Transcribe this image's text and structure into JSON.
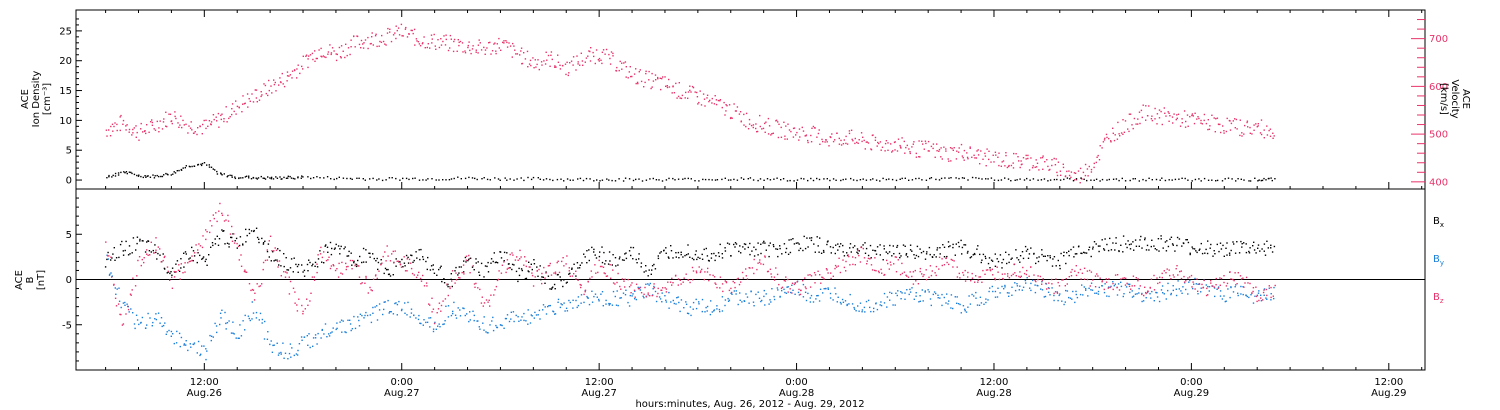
{
  "chart_data": [
    {
      "type": "scatter",
      "panel": "top",
      "ylabel_left": [
        "ACE",
        "Ion Density",
        "[cm⁻³]"
      ],
      "ylabel_right": [
        "ACE",
        "Velocity",
        "[km/s]"
      ],
      "left_axis": {
        "ylim": [
          -1.5,
          28.5
        ],
        "ticks": [
          0,
          5,
          10,
          15,
          20,
          25
        ]
      },
      "right_axis": {
        "ylim": [
          385,
          760
        ],
        "ticks": [
          400,
          500,
          600,
          700
        ],
        "color": "#e8336a"
      },
      "x_range_hours": [
        6,
        78
      ],
      "series": [
        {
          "name": "",
          "axis": "right",
          "color": "#e8336a",
          "x": [
            6,
            7,
            8,
            9,
            10,
            11,
            12,
            13,
            14,
            15,
            16,
            17,
            18,
            19,
            20,
            21,
            22,
            23,
            24,
            25,
            26,
            27,
            28,
            29,
            30,
            31,
            32,
            33,
            34,
            35,
            36,
            37,
            38,
            39,
            40,
            41,
            42,
            43,
            44,
            45,
            46,
            47,
            48,
            49,
            50,
            51,
            52,
            53,
            54,
            55,
            56,
            57,
            58,
            59,
            60,
            61,
            62,
            63,
            64,
            65,
            66,
            67,
            68,
            69,
            70,
            71,
            72,
            73,
            74,
            75,
            76,
            77
          ],
          "values": [
            510,
            525,
            505,
            520,
            540,
            520,
            515,
            535,
            560,
            580,
            600,
            620,
            650,
            680,
            670,
            690,
            700,
            705,
            715,
            700,
            695,
            690,
            685,
            680,
            690,
            670,
            650,
            660,
            640,
            660,
            670,
            650,
            625,
            615,
            605,
            590,
            580,
            565,
            550,
            530,
            520,
            510,
            505,
            500,
            490,
            495,
            485,
            480,
            480,
            470,
            470,
            460,
            465,
            455,
            450,
            445,
            445,
            440,
            430,
            410,
            440,
            500,
            520,
            545,
            540,
            535,
            530,
            525,
            520,
            515,
            515,
            505
          ]
        },
        {
          "name": "",
          "axis": "left",
          "color": "#000000",
          "x": [
            6,
            7,
            8,
            9,
            10,
            11,
            12,
            13,
            14,
            15,
            16,
            17,
            18,
            20,
            22,
            24,
            26,
            28,
            30,
            32,
            34,
            36,
            38,
            40,
            42,
            44,
            46,
            48,
            50,
            52,
            54,
            56,
            58,
            60,
            62,
            64,
            66,
            68,
            70,
            72,
            74,
            76,
            77
          ],
          "values": [
            0.5,
            1.5,
            0.8,
            0.7,
            1.2,
            2.5,
            2.8,
            1.0,
            0.6,
            0.5,
            0.4,
            0.5,
            0.6,
            0.4,
            0.3,
            0.3,
            0.3,
            0.4,
            0.3,
            0.3,
            0.2,
            0.2,
            0.2,
            0.2,
            0.2,
            0.3,
            0.2,
            0.2,
            0.2,
            0.2,
            0.2,
            0.3,
            0.3,
            0.3,
            0.2,
            0.2,
            0.2,
            0.2,
            0.2,
            0.2,
            0.2,
            0.2,
            0.2
          ]
        }
      ]
    },
    {
      "type": "scatter",
      "panel": "bottom",
      "ylabel_left": [
        "ACE",
        "B",
        "[nT]"
      ],
      "ylim": [
        -10,
        10
      ],
      "ticks": [
        -5,
        0,
        5
      ],
      "zero_line": true,
      "x_range_hours": [
        6,
        78
      ],
      "series": [
        {
          "name": "Bx",
          "color": "#000000",
          "x": [
            6,
            7,
            8,
            9,
            10,
            11,
            12,
            13,
            14,
            15,
            16,
            17,
            18,
            19,
            20,
            21,
            22,
            23,
            24,
            25,
            26,
            27,
            28,
            29,
            30,
            31,
            32,
            33,
            34,
            35,
            36,
            37,
            38,
            39,
            40,
            41,
            42,
            43,
            44,
            45,
            46,
            47,
            48,
            49,
            50,
            51,
            52,
            53,
            54,
            55,
            56,
            57,
            58,
            59,
            60,
            61,
            62,
            63,
            64,
            65,
            66,
            67,
            68,
            69,
            70,
            71,
            72,
            73,
            74,
            75,
            76,
            77
          ],
          "values": [
            2,
            3.5,
            4,
            3,
            1,
            3,
            2,
            5,
            4,
            6,
            3,
            2,
            1,
            2.5,
            4,
            2,
            3,
            1,
            2,
            3,
            1,
            0,
            2,
            1,
            3,
            0.5,
            1.5,
            -0.5,
            0,
            2.5,
            3,
            2,
            3,
            1,
            3,
            3.5,
            3,
            3,
            3.5,
            3.5,
            3.5,
            3.5,
            4,
            4,
            3.5,
            3.5,
            3.5,
            3,
            3.5,
            3,
            3,
            3.5,
            3.5,
            3,
            2,
            2.5,
            3,
            2.5,
            2,
            3.5,
            3.5,
            4,
            4,
            4,
            4,
            4,
            3.5,
            3.5,
            3.5,
            3.5,
            3.5,
            3.5
          ]
        },
        {
          "name": "By",
          "color": "#1a7fd9",
          "x": [
            6,
            7,
            8,
            9,
            10,
            11,
            12,
            13,
            14,
            15,
            16,
            17,
            18,
            19,
            20,
            21,
            22,
            23,
            24,
            25,
            26,
            27,
            28,
            29,
            30,
            31,
            32,
            33,
            34,
            35,
            36,
            37,
            38,
            39,
            40,
            41,
            42,
            43,
            44,
            45,
            46,
            47,
            48,
            49,
            50,
            51,
            52,
            53,
            54,
            55,
            56,
            57,
            58,
            59,
            60,
            61,
            62,
            63,
            64,
            65,
            66,
            67,
            68,
            69,
            70,
            71,
            72,
            73,
            74,
            75,
            76,
            77
          ],
          "values": [
            2,
            -3,
            -5,
            -4,
            -6,
            -7,
            -8,
            -4,
            -6,
            -3,
            -7,
            -8,
            -7,
            -6,
            -5,
            -5,
            -4,
            -3,
            -3,
            -4,
            -5,
            -3,
            -4,
            -5,
            -5,
            -4,
            -4,
            -3,
            -3,
            -2,
            -2,
            -2,
            -2,
            -1,
            -2,
            -3,
            -3,
            -3,
            -2,
            -2,
            -2,
            -1.5,
            -1,
            -2,
            -1.5,
            -2,
            -3,
            -2.5,
            -2,
            -1.5,
            -2,
            -2,
            -3,
            -2,
            -1.5,
            -1,
            -0.5,
            -1,
            -2,
            -1.5,
            -1,
            -1,
            -1,
            -1.5,
            -1.5,
            -1,
            -0.5,
            -1,
            -1.5,
            -1,
            -2,
            -1.5
          ]
        },
        {
          "name": "Bz",
          "color": "#e8336a",
          "x": [
            6,
            7,
            8,
            9,
            10,
            11,
            12,
            13,
            14,
            15,
            16,
            17,
            18,
            19,
            20,
            21,
            22,
            23,
            24,
            25,
            26,
            27,
            28,
            29,
            30,
            31,
            32,
            33,
            34,
            35,
            36,
            37,
            38,
            39,
            40,
            41,
            42,
            43,
            44,
            45,
            46,
            47,
            48,
            49,
            50,
            51,
            52,
            53,
            54,
            55,
            56,
            57,
            58,
            59,
            60,
            61,
            62,
            63,
            64,
            65,
            66,
            67,
            68,
            69,
            70,
            71,
            72,
            73,
            74,
            75,
            76,
            77
          ],
          "values": [
            4,
            -5,
            2,
            4,
            0,
            2,
            5,
            8,
            3,
            -2,
            4,
            0,
            -4,
            3,
            1,
            2,
            -1,
            3,
            2,
            1,
            -4,
            0,
            2,
            -3,
            1,
            3,
            0,
            1,
            2,
            -1,
            2,
            0,
            -1,
            -1,
            -1,
            0,
            1,
            0,
            -1,
            1,
            2,
            0,
            -1,
            0,
            1,
            2,
            3,
            1,
            2,
            0,
            1,
            2,
            1,
            0,
            0.5,
            1,
            1,
            0,
            -1,
            1,
            0,
            -0.5,
            0,
            -1,
            0,
            1,
            -0.5,
            -1,
            0,
            0.5,
            -2,
            -1
          ]
        }
      ]
    }
  ],
  "x_axis": {
    "ticks": [
      {
        "hour": 12,
        "time": "12:00",
        "date": "Aug.26"
      },
      {
        "hour": 24,
        "time": "0:00",
        "date": "Aug.27"
      },
      {
        "hour": 36,
        "time": "12:00",
        "date": "Aug.27"
      },
      {
        "hour": 48,
        "time": "0:00",
        "date": "Aug.28"
      },
      {
        "hour": 60,
        "time": "12:00",
        "date": "Aug.28"
      },
      {
        "hour": 72,
        "time": "0:00",
        "date": "Aug.29"
      },
      {
        "hour": 84,
        "time": "12:00",
        "date": "Aug.29"
      }
    ],
    "xlabel": "hours:minutes, Aug. 26, 2012 - Aug. 29, 2012",
    "xlim_hours": [
      4.2,
      86.2
    ]
  },
  "legend": {
    "position": "right",
    "items": [
      {
        "base": "B",
        "sub": "x",
        "color": "#000000"
      },
      {
        "base": "B",
        "sub": "y",
        "color": "#1a7fd9"
      },
      {
        "base": "B",
        "sub": "z",
        "color": "#e8336a"
      }
    ]
  }
}
